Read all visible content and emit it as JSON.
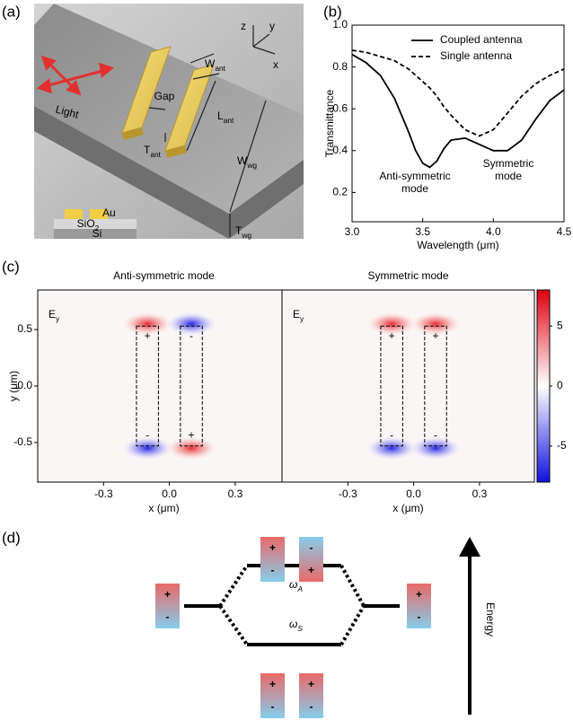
{
  "panel_labels": [
    "(a)",
    "(b)",
    "(c)",
    "(d)"
  ],
  "schematic": {
    "light": "Light",
    "gap": "Gap",
    "axes": [
      "z",
      "y",
      "x"
    ],
    "dims": [
      {
        "main": "W",
        "sub": "ant"
      },
      {
        "main": "L",
        "sub": "ant"
      },
      {
        "main": "T",
        "sub": "ant"
      },
      {
        "main": "W",
        "sub": "wg"
      },
      {
        "main": "T",
        "sub": "wg"
      }
    ],
    "layers": [
      {
        "main": "Au"
      },
      {
        "main": "SiO",
        "sub": "2"
      },
      {
        "main": "Si"
      }
    ]
  },
  "chart_data": [
    {
      "type": "line",
      "xlabel": "Wavelength (μm)",
      "ylabel": "Transmittance",
      "x": [
        3.0,
        3.1,
        3.2,
        3.3,
        3.4,
        3.45,
        3.5,
        3.55,
        3.6,
        3.65,
        3.7,
        3.8,
        3.9,
        4.0,
        4.1,
        4.2,
        4.3,
        4.4,
        4.5
      ],
      "series": [
        {
          "name": "Coupled antenna",
          "color": "#000000",
          "style": "solid",
          "values": [
            0.86,
            0.82,
            0.76,
            0.65,
            0.49,
            0.4,
            0.34,
            0.32,
            0.35,
            0.41,
            0.45,
            0.46,
            0.43,
            0.4,
            0.4,
            0.45,
            0.55,
            0.64,
            0.69
          ]
        },
        {
          "name": "Single antenna",
          "color": "#000000",
          "style": "dashed",
          "values": [
            0.88,
            0.87,
            0.85,
            0.83,
            0.79,
            0.76,
            0.73,
            0.7,
            0.66,
            0.61,
            0.57,
            0.5,
            0.47,
            0.5,
            0.58,
            0.66,
            0.72,
            0.76,
            0.79
          ]
        }
      ],
      "xlim": [
        3.0,
        4.5
      ],
      "xticks": [
        {
          "value": 3,
          "label": "3.0"
        },
        3.5,
        {
          "value": 4,
          "label": "4.0"
        },
        4.5
      ],
      "ylim": [
        0.06,
        1.0
      ],
      "yticks": [
        0.2,
        0.4,
        0.6,
        0.8,
        {
          "value": 1,
          "label": "1.0"
        }
      ],
      "legend": "upper right",
      "annotations": [
        {
          "lines": [
            "Anti-symmetric",
            "mode"
          ],
          "color": "#e0202a"
        },
        {
          "lines": [
            "Symmetric",
            "mode"
          ],
          "color": "#2020d0"
        }
      ]
    },
    {
      "type": "heatmap",
      "title": "Anti-symmetric mode",
      "field": {
        "main": "E",
        "sub": "y"
      },
      "xlabel": "x (μm)",
      "ylabel": "y (μm)",
      "xlim": [
        -0.6,
        0.55
      ],
      "xticks": [
        -0.3,
        {
          "value": 0,
          "label": "0.0"
        },
        0.3
      ],
      "ylim": [
        -0.85,
        0.85
      ],
      "yticks": [
        0.5,
        {
          "value": 0,
          "label": "0.0"
        },
        -0.5
      ],
      "charges": [
        [
          "+",
          "-"
        ],
        [
          "-",
          "+"
        ]
      ]
    },
    {
      "type": "heatmap",
      "title": "Symmetric mode",
      "field": {
        "main": "E",
        "sub": "y"
      },
      "xlabel": "x (μm)",
      "xlim": [
        -0.6,
        0.55
      ],
      "xticks": [
        -0.3,
        {
          "value": 0,
          "label": "0.0"
        },
        0.3
      ],
      "ylim": [
        -0.85,
        0.85
      ],
      "charges": [
        [
          "+",
          "-"
        ],
        [
          "+",
          "-"
        ]
      ],
      "colorbar": {
        "clim": [
          -8,
          8
        ],
        "ticks": [
          5,
          0,
          -5
        ]
      }
    }
  ],
  "diagram": {
    "left": [
      "+",
      "-"
    ],
    "right": [
      "+",
      "-"
    ],
    "upper": [
      [
        "+",
        "-"
      ],
      [
        "-",
        "+"
      ]
    ],
    "lower": [
      [
        "+",
        "-"
      ],
      [
        "+",
        "-"
      ]
    ],
    "omega_a": {
      "main": "ω",
      "sub": "A"
    },
    "omega_s": {
      "main": "ω",
      "sub": "S"
    },
    "energy": "Energy"
  }
}
